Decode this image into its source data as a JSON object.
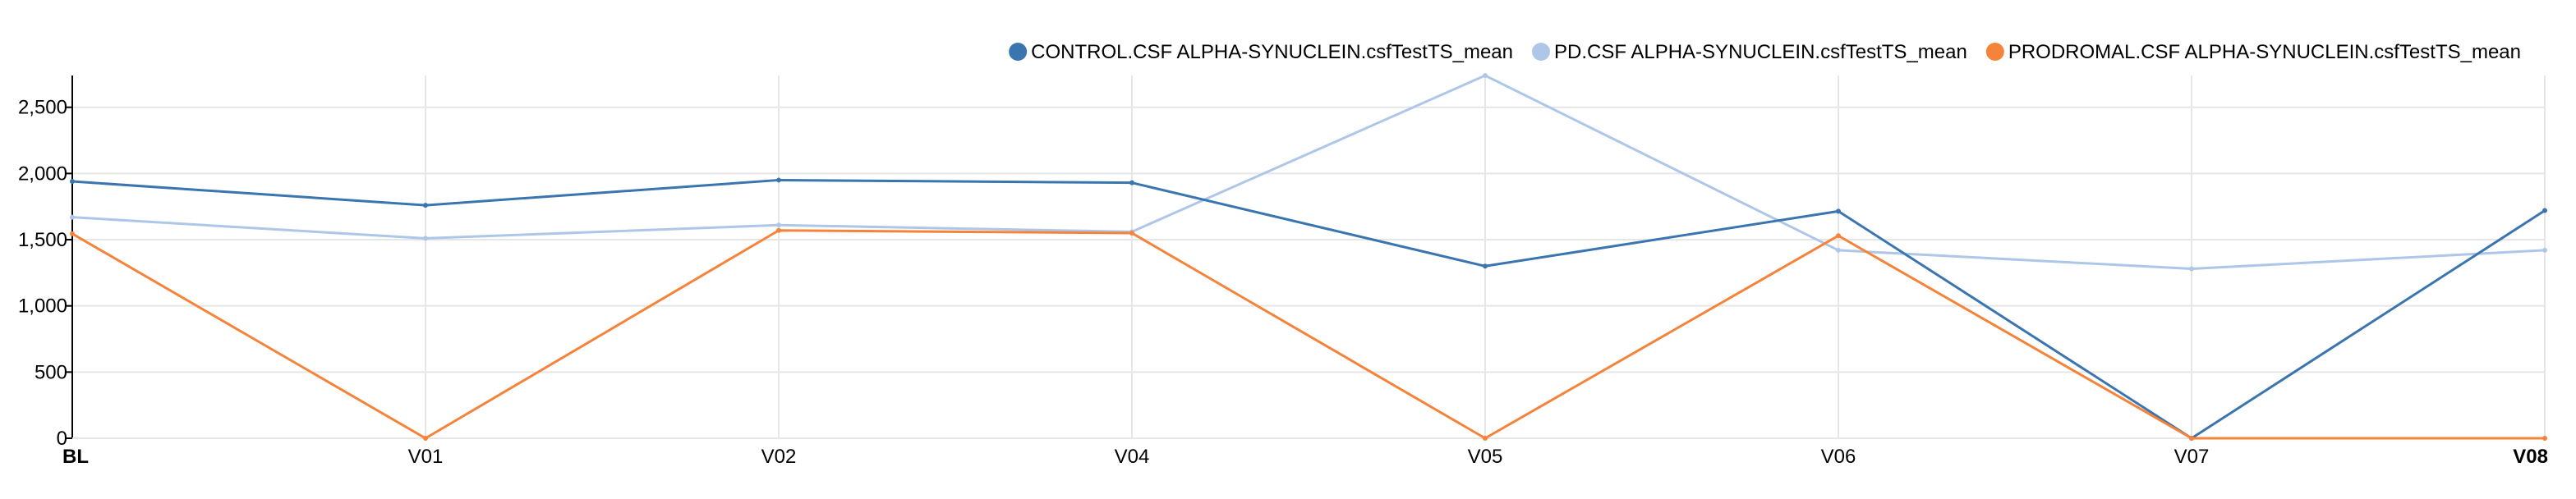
{
  "chart_data": {
    "type": "line",
    "categories": [
      "BL",
      "V01",
      "V02",
      "V04",
      "V05",
      "V06",
      "V07",
      "V08"
    ],
    "bold_categories": [
      "BL",
      "V08"
    ],
    "series": [
      {
        "name": "CONTROL.CSF ALPHA-SYNUCLEIN.csfTestTS_mean",
        "color": "#3a75b0",
        "values": [
          1940,
          1760,
          1950,
          1930,
          1300,
          1715,
          0,
          1720
        ]
      },
      {
        "name": "PD.CSF ALPHA-SYNUCLEIN.csfTestTS_mean",
        "color": "#aec7e8",
        "values": [
          1670,
          1510,
          1610,
          1560,
          2740,
          1420,
          1280,
          1420
        ]
      },
      {
        "name": "PRODROMAL.CSF ALPHA-SYNUCLEIN.csfTestTS_mean",
        "color": "#f5843a",
        "values": [
          1545,
          0,
          1570,
          1550,
          0,
          1530,
          0,
          0
        ]
      }
    ],
    "yticks": [
      0,
      500,
      1000,
      1500,
      2000,
      2500
    ],
    "ytick_labels": [
      "0",
      "500",
      "1,000",
      "1,500",
      "2,000",
      "2,500"
    ],
    "ylim": [
      0,
      2740
    ],
    "grid": true,
    "legend_position": "top-right",
    "title": "",
    "xlabel": "",
    "ylabel": ""
  }
}
